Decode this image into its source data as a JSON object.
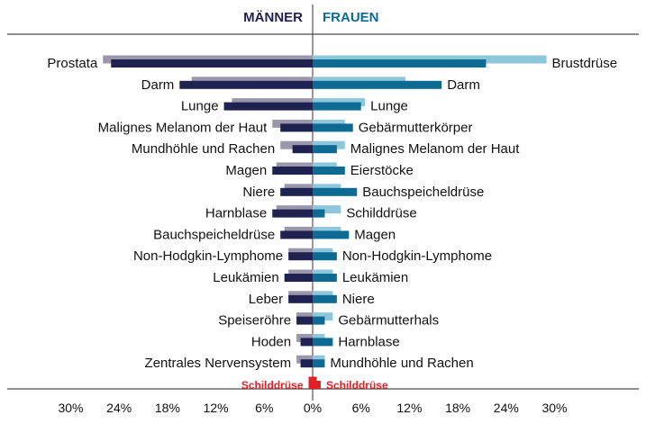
{
  "chart_data": {
    "type": "bar",
    "orientation": "horizontal-butterfly",
    "panels": [
      {
        "name": "MÄNNER",
        "color_dark": "#1f2150",
        "color_light": "#9a97ad",
        "bars": [
          {
            "label": "Prostata",
            "dark": 25.0,
            "light": 26.0
          },
          {
            "label": "Darm",
            "dark": 16.5,
            "light": 15.0
          },
          {
            "label": "Lunge",
            "dark": 11.0,
            "light": 10.0
          },
          {
            "label": "Malignes Melanom der Haut",
            "dark": 4.0,
            "light": 5.0
          },
          {
            "label": "Mundhöhle und Rachen",
            "dark": 2.5,
            "light": 4.0
          },
          {
            "label": "Magen",
            "dark": 5.0,
            "light": 4.5
          },
          {
            "label": "Niere",
            "dark": 4.0,
            "light": 3.5
          },
          {
            "label": "Harnblase",
            "dark": 5.0,
            "light": 4.5
          },
          {
            "label": "Bauchspeicheldrüse",
            "dark": 4.0,
            "light": 3.5
          },
          {
            "label": "Non-Hodgkin-Lymphome",
            "dark": 3.0,
            "light": 3.0
          },
          {
            "label": "Leukämien",
            "dark": 3.5,
            "light": 3.0
          },
          {
            "label": "Leber",
            "dark": 3.0,
            "light": 3.0
          },
          {
            "label": "Speiseröhre",
            "dark": 2.0,
            "light": 2.0
          },
          {
            "label": "Hoden",
            "dark": 1.5,
            "light": 2.0
          },
          {
            "label": "Zentrales Nervensystem",
            "dark": 1.5,
            "light": 2.0
          },
          {
            "label": "Schilddrüse",
            "dark": 0.5,
            "light": 0.5,
            "highlight": true
          }
        ]
      },
      {
        "name": "FRAUEN",
        "color_dark": "#0d6a93",
        "color_light": "#8ec6dc",
        "bars": [
          {
            "label": "Brustdrüse",
            "dark": 21.5,
            "light": 29.0
          },
          {
            "label": "Darm",
            "dark": 16.0,
            "light": 11.5
          },
          {
            "label": "Lunge",
            "dark": 6.0,
            "light": 6.5
          },
          {
            "label": "Gebärmutterkörper",
            "dark": 5.0,
            "light": 4.0
          },
          {
            "label": "Malignes Melanom der Haut",
            "dark": 3.0,
            "light": 4.0
          },
          {
            "label": "Eierstöcke",
            "dark": 4.0,
            "light": 3.0
          },
          {
            "label": "Bauchspeicheldrüse",
            "dark": 5.5,
            "light": 3.5
          },
          {
            "label": "Schilddrüse",
            "dark": 1.5,
            "light": 3.5
          },
          {
            "label": "Magen",
            "dark": 4.5,
            "light": 3.5
          },
          {
            "label": "Non-Hodgkin-Lymphome",
            "dark": 3.0,
            "light": 2.5
          },
          {
            "label": "Leukämien",
            "dark": 3.0,
            "light": 2.5
          },
          {
            "label": "Niere",
            "dark": 3.0,
            "light": 2.5
          },
          {
            "label": "Gebärmutterhals",
            "dark": 1.5,
            "light": 2.5
          },
          {
            "label": "Harnblase",
            "dark": 2.5,
            "light": 1.5
          },
          {
            "label": "Mundhöhle und Rachen",
            "dark": 1.5,
            "light": 1.5
          },
          {
            "label": "Schilddrüse",
            "dark": 1.0,
            "light": 0.5,
            "highlight": true
          }
        ]
      }
    ],
    "x_ticks": [
      "30%",
      "24%",
      "18%",
      "12%",
      "6%",
      "0%",
      "6%",
      "12%",
      "18%",
      "24%",
      "30%"
    ],
    "x_tick_values": [
      -30,
      -24,
      -18,
      -12,
      -6,
      0,
      6,
      12,
      18,
      24,
      30
    ],
    "highlight_color": "#e31f26",
    "grid": false,
    "legend": "none"
  }
}
